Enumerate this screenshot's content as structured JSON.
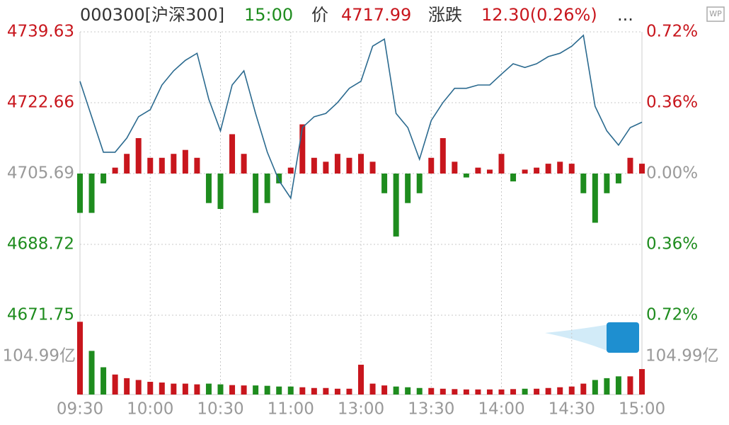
{
  "chart_data": {
    "type": "intraday",
    "header": [
      "000300[沪深300]",
      "15:00",
      "价",
      "4717.99",
      "涨跌",
      "12.30(0.26%)",
      "..."
    ],
    "categories": [
      "09:30",
      null,
      null,
      null,
      null,
      null,
      "10:00",
      null,
      null,
      null,
      null,
      null,
      "10:30",
      null,
      null,
      null,
      null,
      null,
      "11:00",
      null,
      null,
      null,
      null,
      null,
      "13:00",
      null,
      null,
      null,
      null,
      null,
      "13:30",
      null,
      null,
      null,
      null,
      null,
      "14:00",
      null,
      null,
      null,
      null,
      null,
      "14:30",
      null,
      null,
      null,
      null,
      null,
      "15:00"
    ],
    "series": [
      {
        "name": "price",
        "color": "#2b6a8f",
        "values": [
          4727.8,
          4719.3,
          4710.8,
          4710.8,
          4714.2,
          4719.3,
          4721.0,
          4726.9,
          4730.3,
          4732.8,
          4734.5,
          4723.5,
          4715.9,
          4726.9,
          4730.3,
          4720.1,
          4710.8,
          4704.0,
          4699.8,
          4716.7,
          4719.3,
          4720.1,
          4722.7,
          4726.1,
          4727.8,
          4736.2,
          4737.9,
          4720.1,
          4716.7,
          4709.1,
          4718.4,
          4722.7,
          4726.1,
          4726.1,
          4726.9,
          4726.9,
          4729.5,
          4732.0,
          4731.1,
          4732.0,
          4733.7,
          4734.5,
          4736.2,
          4738.8,
          4721.8,
          4715.9,
          4712.5,
          4716.7,
          4717.99
        ]
      },
      {
        "name": "breadth",
        "axis": "y2",
        "values": [
          -0.2,
          -0.2,
          -0.05,
          0.03,
          0.1,
          0.18,
          0.08,
          0.08,
          0.1,
          0.12,
          0.08,
          -0.15,
          -0.18,
          0.2,
          0.1,
          -0.2,
          -0.15,
          -0.05,
          0.03,
          0.25,
          0.08,
          0.06,
          0.1,
          0.08,
          0.1,
          0.06,
          -0.1,
          -0.32,
          -0.15,
          -0.1,
          0.08,
          0.18,
          0.06,
          -0.02,
          0.03,
          0.02,
          0.1,
          -0.04,
          0.02,
          0.03,
          0.05,
          0.06,
          0.05,
          -0.1,
          -0.25,
          -0.1,
          -0.05,
          0.08,
          0.05
        ]
      },
      {
        "name": "volume",
        "axis": "v",
        "values": [
          200,
          120,
          75,
          55,
          45,
          40,
          35,
          33,
          30,
          30,
          28,
          30,
          28,
          26,
          25,
          25,
          24,
          22,
          22,
          20,
          18,
          18,
          16,
          16,
          82,
          30,
          25,
          22,
          20,
          18,
          18,
          16,
          15,
          14,
          14,
          14,
          14,
          15,
          16,
          16,
          18,
          20,
          22,
          30,
          40,
          45,
          50,
          50,
          70
        ]
      }
    ],
    "up_color": "#c8161d",
    "down_color": "#1e8c1e",
    "flat_color": "#999999",
    "ylim": [
      4671.75,
      4739.63
    ],
    "yticks": [
      4739.63,
      4722.66,
      4705.69,
      4688.72,
      4671.75
    ],
    "y2lim": [
      -0.72,
      0.72
    ],
    "y2ticks": [
      {
        "value": 0.72,
        "label": "0.72%"
      },
      {
        "value": 0.36,
        "label": "0.36%"
      },
      {
        "value": 0,
        "label": "0.00%"
      },
      {
        "value": -0.36,
        "label": "0.36%"
      },
      {
        "value": -0.72,
        "label": "0.72%"
      }
    ],
    "vlim": [
      0,
      220
    ],
    "vticks": [
      {
        "value": 104.99,
        "label": "104.99亿"
      }
    ],
    "grid": true
  }
}
